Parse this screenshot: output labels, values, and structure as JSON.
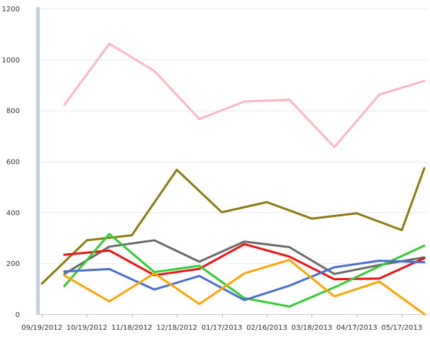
{
  "chart_data": {
    "type": "line",
    "title": "",
    "xlabel": "",
    "ylabel": "",
    "ylim": [
      0,
      1200
    ],
    "yticks": [
      0,
      200,
      400,
      600,
      800,
      1000,
      1200
    ],
    "x_ticks": [
      "09/19/2012",
      "10/19/2012",
      "11/18/2012",
      "12/18/2012",
      "01/17/2013",
      "02/16/2013",
      "03/18/2013",
      "04/17/2013",
      "05/17/2013"
    ],
    "x": [
      "09/19/2012",
      "10/04/2012",
      "10/19/2012",
      "11/03/2012",
      "11/18/2012",
      "12/03/2012",
      "12/18/2012",
      "01/02/2013",
      "01/17/2013",
      "02/01/2013",
      "02/16/2013",
      "03/03/2013",
      "03/18/2013",
      "04/02/2013",
      "04/17/2013",
      "05/02/2013",
      "05/17/2013",
      "06/01/2013"
    ],
    "grid": true,
    "legend": "none",
    "series": [
      {
        "color": "#ffb6c1",
        "points": [
          [
            "10/04/2012",
            822
          ],
          [
            "11/03/2012",
            1062
          ],
          [
            "12/03/2012",
            955
          ],
          [
            "01/02/2013",
            766
          ],
          [
            "02/01/2013",
            835
          ],
          [
            "03/03/2013",
            842
          ],
          [
            "04/02/2013",
            656
          ],
          [
            "05/02/2013",
            862
          ],
          [
            "06/01/2013",
            916
          ]
        ]
      },
      {
        "color": "#8b7a12",
        "points": [
          [
            "09/19/2012",
            120
          ],
          [
            "10/19/2012",
            290
          ],
          [
            "11/18/2012",
            310
          ],
          [
            "12/18/2012",
            567
          ],
          [
            "01/17/2013",
            400
          ],
          [
            "02/16/2013",
            440
          ],
          [
            "03/18/2013",
            375
          ],
          [
            "04/17/2013",
            396
          ],
          [
            "05/17/2013",
            330
          ],
          [
            "06/01/2013",
            573
          ]
        ]
      },
      {
        "color": "#696969",
        "points": [
          [
            "10/04/2012",
            158
          ],
          [
            "11/03/2012",
            265
          ],
          [
            "12/03/2012",
            290
          ],
          [
            "01/02/2013",
            206
          ],
          [
            "02/01/2013",
            285
          ],
          [
            "03/03/2013",
            263
          ],
          [
            "04/02/2013",
            158
          ],
          [
            "05/02/2013",
            193
          ],
          [
            "06/01/2013",
            223
          ]
        ]
      },
      {
        "color": "#ee1111",
        "points": [
          [
            "10/04/2012",
            233
          ],
          [
            "11/03/2012",
            250
          ],
          [
            "12/03/2012",
            153
          ],
          [
            "01/02/2013",
            178
          ],
          [
            "02/01/2013",
            275
          ],
          [
            "03/03/2013",
            226
          ],
          [
            "04/02/2013",
            137
          ],
          [
            "05/02/2013",
            140
          ],
          [
            "06/01/2013",
            220
          ]
        ]
      },
      {
        "color": "#33cc33",
        "points": [
          [
            "10/04/2012",
            110
          ],
          [
            "11/03/2012",
            315
          ],
          [
            "12/03/2012",
            165
          ],
          [
            "01/02/2013",
            190
          ],
          [
            "02/01/2013",
            63
          ],
          [
            "03/03/2013",
            30
          ],
          [
            "04/02/2013",
            105
          ],
          [
            "05/02/2013",
            188
          ],
          [
            "06/01/2013",
            269
          ]
        ]
      },
      {
        "color": "#4a6ed0",
        "points": [
          [
            "10/04/2012",
            168
          ],
          [
            "11/03/2012",
            177
          ],
          [
            "12/03/2012",
            97
          ],
          [
            "01/02/2013",
            150
          ],
          [
            "02/01/2013",
            55
          ],
          [
            "03/03/2013",
            112
          ],
          [
            "04/02/2013",
            184
          ],
          [
            "05/02/2013",
            210
          ],
          [
            "06/01/2013",
            204
          ]
        ]
      },
      {
        "color": "#ffa500",
        "points": [
          [
            "10/04/2012",
            152
          ],
          [
            "11/03/2012",
            50
          ],
          [
            "12/03/2012",
            160
          ],
          [
            "01/02/2013",
            40
          ],
          [
            "02/01/2013",
            160
          ],
          [
            "03/03/2013",
            213
          ],
          [
            "04/02/2013",
            70
          ],
          [
            "05/02/2013",
            128
          ],
          [
            "06/01/2013",
            0
          ]
        ]
      }
    ]
  }
}
